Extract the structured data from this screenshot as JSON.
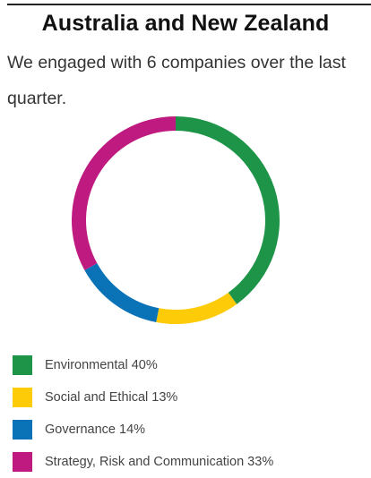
{
  "title": "Australia and New Zealand",
  "subtitle": "We engaged with 6 companies over the last quarter.",
  "chart_data": {
    "type": "pie",
    "style": "donut",
    "title": "",
    "categories": [
      "Environmental",
      "Social and Ethical",
      "Governance",
      "Strategy, Risk and Communication"
    ],
    "values": [
      40,
      13,
      14,
      33
    ],
    "unit": "%",
    "colors": [
      "#1e9448",
      "#fecb09",
      "#0a73b8",
      "#be1a80"
    ],
    "legend": "bottom-left",
    "legend_labels": [
      "Environmental 40%",
      "Social and Ethical 13%",
      "Governance 14%",
      "Strategy, Risk and Communication 33%"
    ]
  }
}
